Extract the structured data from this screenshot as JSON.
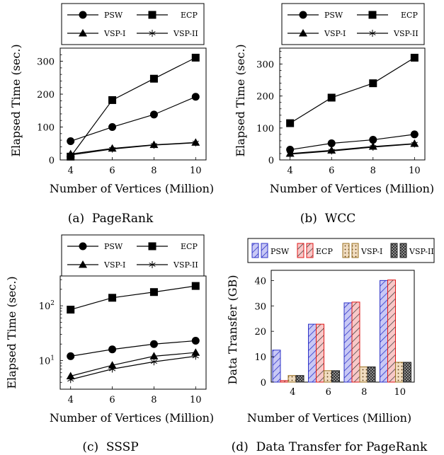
{
  "chart_data": [
    {
      "type": "line",
      "caption": "(a)  PageRank",
      "xlabel": "Number of Vertices (Million)",
      "ylabel": "Elapsed Time (sec.)",
      "x": [
        4,
        6,
        8,
        10
      ],
      "xlim": [
        3.5,
        10.5
      ],
      "ylim": [
        0,
        340
      ],
      "yscale": "linear",
      "xticks": [
        4,
        6,
        8,
        10
      ],
      "yticks": [
        0,
        100,
        200,
        300
      ],
      "legend_location": "top",
      "series": [
        {
          "name": "PSW",
          "marker": "circle",
          "values": [
            57,
            100,
            138,
            192
          ]
        },
        {
          "name": "ECP",
          "marker": "square",
          "values": [
            10,
            182,
            247,
            311
          ]
        },
        {
          "name": "VSP-I",
          "marker": "triangle",
          "values": [
            18,
            35,
            46,
            53
          ]
        },
        {
          "name": "VSP-II",
          "marker": "star",
          "values": [
            15,
            33,
            45,
            52
          ]
        }
      ]
    },
    {
      "type": "line",
      "caption": "(b)  WCC",
      "xlabel": "Number of Vertices (Million)",
      "ylabel": "Elapsed Time (sec.)",
      "x": [
        4,
        6,
        8,
        10
      ],
      "xlim": [
        3.5,
        10.5
      ],
      "ylim": [
        0,
        350
      ],
      "yscale": "linear",
      "xticks": [
        4,
        6,
        8,
        10
      ],
      "yticks": [
        0,
        100,
        200,
        300
      ],
      "legend_location": "top",
      "series": [
        {
          "name": "PSW",
          "marker": "circle",
          "values": [
            32,
            52,
            63,
            80
          ]
        },
        {
          "name": "ECP",
          "marker": "square",
          "values": [
            115,
            195,
            240,
            320
          ]
        },
        {
          "name": "VSP-I",
          "marker": "triangle",
          "values": [
            20,
            30,
            42,
            51
          ]
        },
        {
          "name": "VSP-II",
          "marker": "star",
          "values": [
            18,
            28,
            40,
            50
          ]
        }
      ]
    },
    {
      "type": "line",
      "caption": "(c)  SSSP",
      "xlabel": "Number of Vertices (Million)",
      "ylabel": "Elapsed Time (sec.)",
      "x": [
        4,
        6,
        8,
        10
      ],
      "xlim": [
        3.5,
        10.5
      ],
      "ylim": [
        3,
        350
      ],
      "yscale": "log",
      "xticks": [
        4,
        6,
        8,
        10
      ],
      "yticks": [
        10,
        100
      ],
      "ytick_labels": [
        "10^1",
        "10^2"
      ],
      "legend_location": "top",
      "series": [
        {
          "name": "PSW",
          "marker": "circle",
          "values": [
            12,
            16,
            20,
            23
          ]
        },
        {
          "name": "ECP",
          "marker": "square",
          "values": [
            85,
            140,
            178,
            230
          ]
        },
        {
          "name": "VSP-I",
          "marker": "triangle",
          "values": [
            5.2,
            8.2,
            12,
            14
          ]
        },
        {
          "name": "VSP-II",
          "marker": "star",
          "values": [
            4.5,
            7,
            9.5,
            12
          ]
        }
      ]
    },
    {
      "type": "bar",
      "caption": "(d)  Data Transfer for PageRank",
      "xlabel": "Number of Vertices (Million)",
      "ylabel": "Data Transfer (GB)",
      "categories": [
        "4",
        "6",
        "8",
        "10"
      ],
      "ylim": [
        0,
        44
      ],
      "yticks": [
        0,
        10,
        20,
        30,
        40
      ],
      "legend_location": "top",
      "series": [
        {
          "name": "PSW",
          "color": "#2f35c8",
          "fill": "#c8c8f5",
          "pattern": "north east lines",
          "values": [
            12.6,
            22.8,
            31.2,
            40
          ]
        },
        {
          "name": "ECP",
          "color": "#e01818",
          "fill": "#f8c8c8",
          "pattern": "north east lines",
          "values": [
            0.6,
            22.8,
            31.5,
            40.2
          ]
        },
        {
          "name": "VSP-I",
          "color": "#9a7020",
          "fill": "#f0dcc0",
          "pattern": "dots",
          "values": [
            2.6,
            4.5,
            6,
            7.8
          ]
        },
        {
          "name": "VSP-II",
          "color": "#222222",
          "fill": "#a8a8a8",
          "pattern": "crosshatch",
          "values": [
            2.6,
            4.5,
            6,
            7.8
          ]
        }
      ]
    }
  ]
}
